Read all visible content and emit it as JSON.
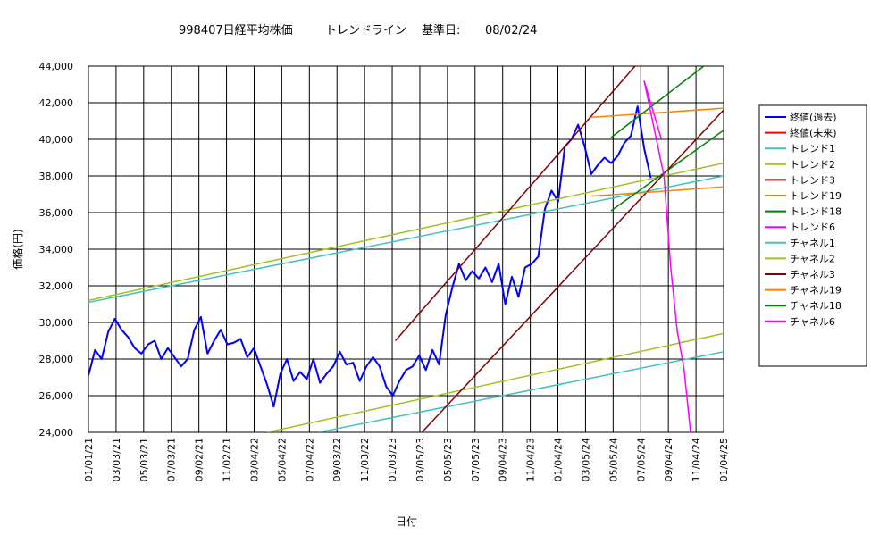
{
  "chart_data": {
    "type": "line",
    "title": {
      "main": "998407日経平均株価",
      "sub": "トレンドライン",
      "ref_label": "基準日:",
      "ref_date": "08/02/24"
    },
    "xlabel": "日付",
    "ylabel": "価格(円)",
    "ylim": [
      24000,
      44000
    ],
    "yticks": [
      24000,
      26000,
      28000,
      30000,
      32000,
      34000,
      36000,
      38000,
      40000,
      42000,
      44000
    ],
    "ytick_labels": [
      "24,000",
      "26,000",
      "28,000",
      "30,000",
      "32,000",
      "34,000",
      "36,000",
      "38,000",
      "40,000",
      "42,000",
      "44,000"
    ],
    "xlim": [
      0,
      48
    ],
    "xtick_labels": [
      "01/01/21",
      "03/03/21",
      "05/03/21",
      "07/03/21",
      "09/02/21",
      "11/02/21",
      "03/04/22",
      "05/04/22",
      "07/04/22",
      "09/03/22",
      "11/03/22",
      "01/03/23",
      "03/05/23",
      "05/05/23",
      "07/05/23",
      "09/04/23",
      "11/04/23",
      "01/04/24",
      "03/05/24",
      "05/05/24",
      "07/05/24",
      "09/04/24",
      "11/04/24",
      "01/04/25"
    ],
    "grid": true,
    "legend_position": "right",
    "series": [
      {
        "name": "終値(過去)",
        "color": "#0000ff",
        "kind": "price",
        "x": [
          0,
          0.5,
          1,
          1.5,
          2,
          2.5,
          3,
          3.5,
          4,
          4.5,
          5,
          5.5,
          6,
          6.5,
          7,
          7.5,
          8,
          8.5,
          9,
          9.5,
          10,
          10.5,
          11,
          11.5,
          12,
          12.5,
          13,
          13.5,
          14,
          14.5,
          15,
          15.5,
          16,
          16.5,
          17,
          17.5,
          18,
          18.5,
          19,
          19.5,
          20,
          20.5,
          21,
          21.5,
          22,
          22.5,
          23,
          23.5,
          24,
          24.5,
          25,
          25.5,
          26,
          26.5,
          27,
          27.5,
          28,
          28.5,
          29,
          29.5,
          30,
          30.5,
          31,
          31.5,
          32,
          32.5,
          33,
          33.5,
          34,
          34.5,
          35,
          35.5,
          36,
          36.5,
          37,
          37.5,
          38,
          38.5,
          39,
          39.5,
          40,
          40.5,
          41,
          41.5,
          42,
          42.5
        ],
        "y": [
          27100,
          28500,
          28000,
          29500,
          30200,
          29600,
          29200,
          28600,
          28300,
          28800,
          29000,
          28000,
          28600,
          28100,
          27600,
          28000,
          29600,
          30300,
          28300,
          29000,
          29600,
          28800,
          28900,
          29100,
          28100,
          28600,
          27600,
          26600,
          25400,
          27200,
          28000,
          26800,
          27300,
          26900,
          28000,
          26700,
          27200,
          27600,
          28400,
          27700,
          27800,
          26800,
          27600,
          28100,
          27600,
          26500,
          26000,
          26800,
          27400,
          27600,
          28200,
          27400,
          28500,
          27700,
          30400,
          31900,
          33200,
          32300,
          32800,
          32400,
          33000,
          32200,
          33200,
          31000,
          32500,
          31400,
          33000,
          33200,
          33600,
          36200,
          37200,
          36600,
          39600,
          40000,
          40800,
          39600,
          38100,
          38600,
          39000,
          38700,
          39100,
          39800,
          40200,
          41800,
          39500,
          37900
        ]
      },
      {
        "name": "終値(未来)",
        "color": "#ff0000",
        "x": [],
        "y": []
      },
      {
        "name": "トレンド1",
        "color": "#40c0c0",
        "x": [
          0,
          48
        ],
        "y": [
          31100,
          38000
        ]
      },
      {
        "name": "トレンド2",
        "color": "#a0c020",
        "x": [
          0,
          48
        ],
        "y": [
          31200,
          38700
        ]
      },
      {
        "name": "トレンド3",
        "color": "#800000",
        "x": [
          23.2,
          41.3
        ],
        "y": [
          29000,
          44000
        ]
      },
      {
        "name": "トレンド19",
        "color": "#ff8000",
        "x": [
          38,
          48
        ],
        "y": [
          41200,
          41700
        ]
      },
      {
        "name": "トレンド18",
        "color": "#008000",
        "x": [
          39.5,
          46.5
        ],
        "y": [
          40100,
          44000
        ]
      },
      {
        "name": "トレンド6",
        "color": "#ff00ff",
        "x": [
          42,
          43.3
        ],
        "y": [
          43200,
          40000
        ]
      },
      {
        "name": "チャネル1",
        "color": "#40c0c0",
        "x": [
          17.4,
          48
        ],
        "y": [
          24000,
          28400
        ]
      },
      {
        "name": "チャネル2",
        "color": "#a0c020",
        "x": [
          13.5,
          48
        ],
        "y": [
          24000,
          29400
        ]
      },
      {
        "name": "チャネル3",
        "color": "#800000",
        "x": [
          25.2,
          48
        ],
        "y": [
          24000,
          41600
        ]
      },
      {
        "name": "チャネル19",
        "color": "#ff8000",
        "x": [
          38,
          48
        ],
        "y": [
          36900,
          37400
        ]
      },
      {
        "name": "チャネル18",
        "color": "#008000",
        "x": [
          39.5,
          48
        ],
        "y": [
          36100,
          40500
        ]
      },
      {
        "name": "チャネル6",
        "color": "#ff00ff",
        "x": [
          42,
          43.5,
          44,
          44.5,
          45,
          45.5
        ],
        "y": [
          43200,
          38000,
          33000,
          29500,
          27500,
          24000
        ]
      }
    ]
  }
}
